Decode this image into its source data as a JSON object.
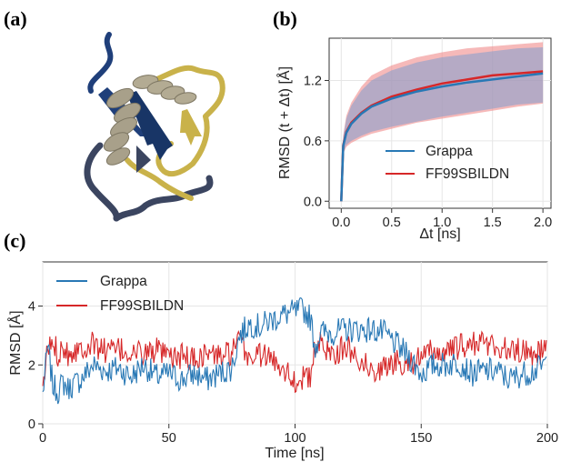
{
  "figure": {
    "panel_labels": [
      "(a)",
      "(b)",
      "(c)"
    ]
  },
  "chart_data": [
    {
      "panel": "(a)",
      "type": "image",
      "description_colors": {
        "strand": "#1f3f7a",
        "helix": "#a8a08a",
        "coil": "#c9b24a",
        "coil_dark": "#3b4560"
      }
    },
    {
      "panel": "(b)",
      "type": "line",
      "xlabel": "Δt [ns]",
      "ylabel": "RMSD (t + Δt) [Å]",
      "xlim": [
        -0.12,
        2.08
      ],
      "ylim": [
        -0.07,
        1.62
      ],
      "xticks": [
        "0.0",
        "0.5",
        "1.0",
        "1.5",
        "2.0"
      ],
      "xtick_values": [
        0,
        0.5,
        1.0,
        1.5,
        2.0
      ],
      "yticks": [
        "0.0",
        "0.6",
        "1.2"
      ],
      "ytick_values": [
        0,
        0.6,
        1.2
      ],
      "grid": true,
      "legend_position": "lower-right",
      "series": [
        {
          "name": "Grappa",
          "color": "#2878b5",
          "x": [
            0,
            0.02,
            0.05,
            0.1,
            0.2,
            0.3,
            0.5,
            0.75,
            1.0,
            1.25,
            1.5,
            1.75,
            2.0
          ],
          "y": [
            0,
            0.55,
            0.68,
            0.77,
            0.87,
            0.94,
            1.02,
            1.09,
            1.14,
            1.18,
            1.21,
            1.24,
            1.27
          ],
          "band_low": [
            0,
            0.48,
            0.56,
            0.6,
            0.65,
            0.69,
            0.74,
            0.79,
            0.84,
            0.88,
            0.92,
            0.96,
            0.98
          ],
          "band_high": [
            0,
            0.64,
            0.82,
            0.95,
            1.1,
            1.2,
            1.3,
            1.38,
            1.43,
            1.46,
            1.49,
            1.52,
            1.53
          ]
        },
        {
          "name": "FF99SBILDN",
          "color": "#d62728",
          "x": [
            0,
            0.02,
            0.05,
            0.1,
            0.2,
            0.3,
            0.5,
            0.75,
            1.0,
            1.25,
            1.5,
            1.75,
            2.0
          ],
          "y": [
            0,
            0.56,
            0.69,
            0.78,
            0.88,
            0.95,
            1.04,
            1.11,
            1.17,
            1.21,
            1.25,
            1.27,
            1.29
          ],
          "band_low": [
            0,
            0.47,
            0.54,
            0.58,
            0.63,
            0.67,
            0.72,
            0.78,
            0.82,
            0.86,
            0.9,
            0.94,
            0.97
          ],
          "band_high": [
            0,
            0.66,
            0.85,
            0.98,
            1.14,
            1.25,
            1.35,
            1.43,
            1.48,
            1.52,
            1.54,
            1.56,
            1.58
          ]
        }
      ]
    },
    {
      "panel": "(c)",
      "type": "line",
      "xlabel": "Time [ns]",
      "ylabel": "RMSD [Å]",
      "xlim": [
        0,
        200
      ],
      "ylim": [
        0,
        5.5
      ],
      "xticks": [
        "0",
        "50",
        "100",
        "150",
        "200"
      ],
      "xtick_values": [
        0,
        50,
        100,
        150,
        200
      ],
      "yticks": [
        "0",
        "2",
        "4"
      ],
      "ytick_values": [
        0,
        2,
        4
      ],
      "grid": true,
      "legend_position": "upper-left",
      "series": [
        {
          "name": "Grappa",
          "color": "#2878b5",
          "x": [
            0,
            1,
            2,
            4,
            6,
            8,
            10,
            15,
            20,
            25,
            30,
            35,
            40,
            45,
            50,
            55,
            60,
            65,
            70,
            75,
            78,
            82,
            86,
            90,
            95,
            100,
            103,
            106,
            108,
            110,
            115,
            120,
            125,
            130,
            135,
            140,
            145,
            150,
            155,
            160,
            165,
            170,
            175,
            180,
            185,
            190,
            195,
            200
          ],
          "y": [
            1.0,
            1.8,
            2.6,
            1.3,
            1.1,
            1.4,
            1.2,
            1.5,
            2.0,
            1.8,
            1.9,
            1.6,
            2.0,
            1.6,
            1.7,
            1.5,
            1.7,
            1.5,
            1.7,
            1.9,
            3.0,
            3.4,
            3.3,
            3.5,
            3.7,
            3.8,
            3.9,
            3.6,
            2.6,
            3.1,
            3.1,
            3.2,
            3.2,
            3.2,
            3.1,
            2.7,
            2.3,
            1.7,
            2.0,
            2.0,
            2.1,
            1.7,
            1.8,
            1.8,
            1.5,
            1.7,
            1.8,
            2.1
          ]
        },
        {
          "name": "FF99SBILDN",
          "color": "#d62728",
          "x": [
            0,
            1,
            2,
            4,
            6,
            8,
            10,
            15,
            20,
            25,
            30,
            35,
            40,
            45,
            50,
            55,
            60,
            65,
            70,
            75,
            78,
            82,
            86,
            90,
            95,
            100,
            103,
            106,
            108,
            110,
            115,
            120,
            125,
            130,
            135,
            140,
            145,
            150,
            155,
            160,
            165,
            170,
            175,
            180,
            185,
            190,
            195,
            200
          ],
          "y": [
            0.9,
            2.0,
            2.5,
            2.8,
            2.4,
            2.7,
            2.4,
            2.6,
            2.7,
            2.5,
            2.5,
            2.4,
            2.4,
            2.5,
            2.2,
            2.3,
            2.2,
            2.4,
            2.3,
            2.4,
            2.8,
            2.2,
            2.4,
            2.2,
            2.0,
            1.4,
            1.6,
            1.5,
            2.6,
            2.7,
            2.4,
            2.6,
            2.3,
            1.8,
            1.9,
            2.1,
            2.1,
            2.2,
            2.5,
            2.4,
            2.6,
            2.7,
            2.8,
            2.6,
            2.5,
            2.5,
            2.4,
            2.5
          ]
        }
      ]
    }
  ]
}
